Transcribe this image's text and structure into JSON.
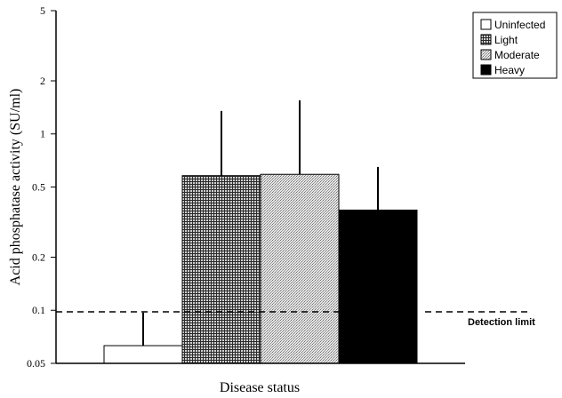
{
  "chart_data": {
    "type": "bar",
    "ylabel": "Acid phosphatase activity (SU/ml)",
    "xlabel": "Disease status",
    "yscale": "log",
    "ylim": [
      0.05,
      5
    ],
    "yticks": [
      0.05,
      0.1,
      0.2,
      0.5,
      1,
      2,
      5
    ],
    "ytick_labels": [
      "0.05",
      "0.1",
      "0.2",
      "0.5",
      "1",
      "2",
      "5"
    ],
    "categories": [
      "Uninfected",
      "Light",
      "Moderate",
      "Heavy"
    ],
    "values": [
      0.063,
      0.58,
      0.59,
      0.37
    ],
    "error_upper": [
      0.097,
      1.35,
      1.55,
      0.65
    ],
    "patterns": [
      "white",
      "crosshatch",
      "stipple",
      "black"
    ],
    "legend": {
      "position": "top-right",
      "entries": [
        "Uninfected",
        "Light",
        "Moderate",
        "Heavy"
      ]
    },
    "reference_line": {
      "value": 0.098,
      "style": "dashed",
      "label": "Detection limit"
    }
  }
}
